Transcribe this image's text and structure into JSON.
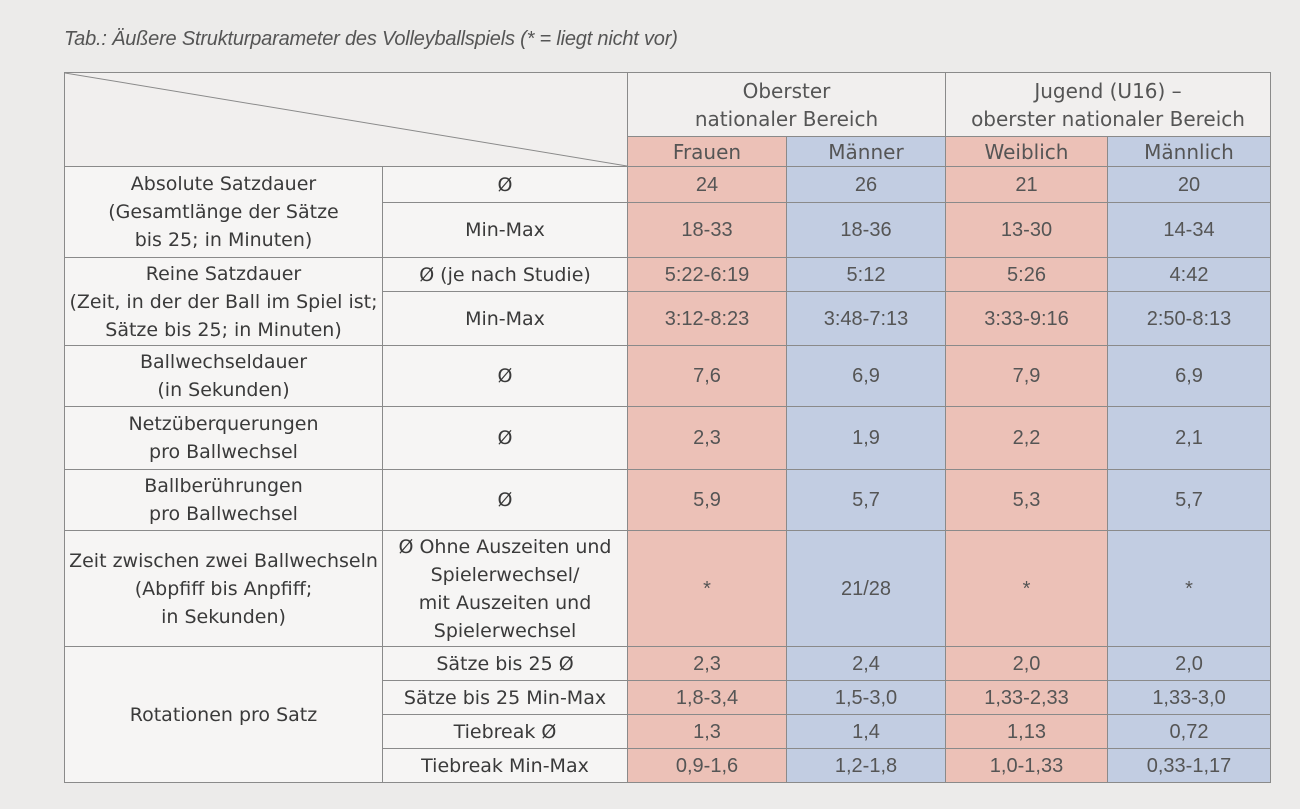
{
  "caption": "Tab.: Äußere Strukturparameter des Volleyballspiels (* = liegt nicht vor)",
  "header": {
    "group1": [
      "Oberster",
      "nationaler Bereich"
    ],
    "group2": [
      "Jugend (U16) –",
      "oberster nationaler Bereich"
    ],
    "columns": [
      "Frauen",
      "Männer",
      "Weiblich",
      "Männlich"
    ]
  },
  "sections": [
    {
      "label": [
        "Absolute Satzdauer",
        "(Gesamtlänge der Sätze",
        "bis 25; in Minuten)"
      ],
      "rows": [
        {
          "stat": [
            "Ø"
          ],
          "values": [
            "24",
            "26",
            "21",
            "20"
          ]
        },
        {
          "stat": [
            "Min-Max"
          ],
          "values": [
            "18-33",
            "18-36",
            "13-30",
            "14-34"
          ]
        }
      ]
    },
    {
      "label": [
        "Reine Satzdauer",
        "(Zeit, in der der Ball im Spiel ist;",
        "Sätze bis 25; in Minuten)"
      ],
      "rows": [
        {
          "stat": [
            "Ø (je nach Studie)"
          ],
          "values": [
            "5:22-6:19",
            "5:12",
            "5:26",
            "4:42"
          ]
        },
        {
          "stat": [
            "Min-Max"
          ],
          "values": [
            "3:12-8:23",
            "3:48-7:13",
            "3:33-9:16",
            "2:50-8:13"
          ]
        }
      ]
    },
    {
      "label": [
        "Ballwechseldauer",
        "(in Sekunden)"
      ],
      "rows": [
        {
          "stat": [
            "Ø"
          ],
          "values": [
            "7,6",
            "6,9",
            "7,9",
            "6,9"
          ]
        }
      ]
    },
    {
      "label": [
        "Netzüberquerungen",
        "pro Ballwechsel"
      ],
      "rows": [
        {
          "stat": [
            "Ø"
          ],
          "values": [
            "2,3",
            "1,9",
            "2,2",
            "2,1"
          ]
        }
      ]
    },
    {
      "label": [
        "Ballberührungen",
        "pro Ballwechsel"
      ],
      "rows": [
        {
          "stat": [
            "Ø"
          ],
          "values": [
            "5,9",
            "5,7",
            "5,3",
            "5,7"
          ]
        }
      ]
    },
    {
      "label": [
        "Zeit zwischen zwei Ballwechseln",
        "(Abpfiff bis Anpfiff;",
        "in Sekunden)"
      ],
      "rows": [
        {
          "stat": [
            "Ø Ohne Auszeiten und",
            "Spielerwechsel/",
            "mit Auszeiten und",
            "Spielerwechsel"
          ],
          "values": [
            "*",
            "21/28",
            "*",
            "*"
          ]
        }
      ]
    },
    {
      "label": [
        "Rotationen pro Satz"
      ],
      "rows": [
        {
          "stat": [
            "Sätze bis 25 Ø"
          ],
          "values": [
            "2,3",
            "2,4",
            "2,0",
            "2,0"
          ]
        },
        {
          "stat": [
            "Sätze bis 25 Min-Max"
          ],
          "values": [
            "1,8-3,4",
            "1,5-3,0",
            "1,33-2,33",
            "1,33-3,0"
          ]
        },
        {
          "stat": [
            "Tiebreak Ø"
          ],
          "values": [
            "1,3",
            "1,4",
            "1,13",
            "0,72"
          ]
        },
        {
          "stat": [
            "Tiebreak Min-Max"
          ],
          "values": [
            "0,9-1,6",
            "1,2-1,8",
            "1,0-1,33",
            "0,33-1,17"
          ]
        }
      ]
    }
  ]
}
